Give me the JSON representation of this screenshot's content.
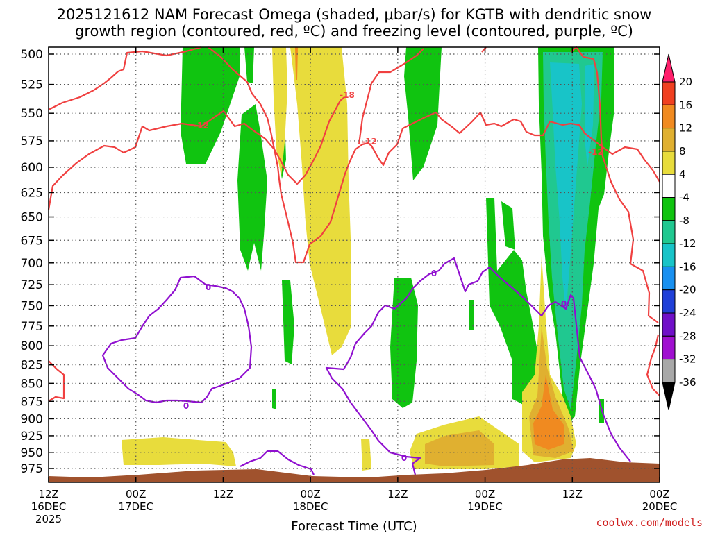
{
  "chart_data": {
    "type": "time-height cross section",
    "title_line1": "2025121612 NAM Forecast Omega (shaded, μbar/s) for KGTB with dendritic snow",
    "title_line2": "growth region (contoured, red, ºC) and freezing level (contoured, purple, ºC)",
    "xlabel": "Forecast Time (UTC)",
    "credit": "coolwx.com/models",
    "y_levels": [
      500,
      525,
      550,
      575,
      600,
      625,
      650,
      675,
      700,
      725,
      750,
      775,
      800,
      825,
      850,
      875,
      900,
      925,
      950,
      975
    ],
    "x_range_hours": [
      0,
      84
    ],
    "x_ticks": [
      {
        "hour": 0,
        "l1": "12Z",
        "l2": "16DEC",
        "l3": "2025"
      },
      {
        "hour": 12,
        "l1": "00Z",
        "l2": "17DEC",
        "l3": ""
      },
      {
        "hour": 24,
        "l1": "12Z",
        "l2": "",
        "l3": ""
      },
      {
        "hour": 36,
        "l1": "00Z",
        "l2": "18DEC",
        "l3": ""
      },
      {
        "hour": 48,
        "l1": "12Z",
        "l2": "",
        "l3": ""
      },
      {
        "hour": 60,
        "l1": "00Z",
        "l2": "19DEC",
        "l3": ""
      },
      {
        "hour": 72,
        "l1": "12Z",
        "l2": "",
        "l3": ""
      },
      {
        "hour": 84,
        "l1": "00Z",
        "l2": "20DEC",
        "l3": ""
      }
    ],
    "colorbar": {
      "labels": [
        "20",
        "16",
        "12",
        "8",
        "4",
        "-4",
        "-8",
        "-12",
        "-16",
        "-20",
        "-24",
        "-28",
        "-32",
        "-36"
      ],
      "colors": [
        "#ff1f6b",
        "#f04020",
        "#f08a20",
        "#e0b030",
        "#e8dc3c",
        "#ffffff",
        "#10c410",
        "#20c890",
        "#18c4c8",
        "#1890f0",
        "#2040d8",
        "#7010c8",
        "#a010d0",
        "#a8a8a8",
        "#000000"
      ]
    },
    "contour_labels": {
      "dgz_red": [
        "-12",
        "-18",
        "-12",
        "-12"
      ],
      "freezing_purple": [
        "0",
        "0",
        "0",
        "0",
        "0"
      ]
    },
    "terrain_color": "#a0522d",
    "dgz_color": "#f04040",
    "freezing_color": "#9010d0"
  }
}
